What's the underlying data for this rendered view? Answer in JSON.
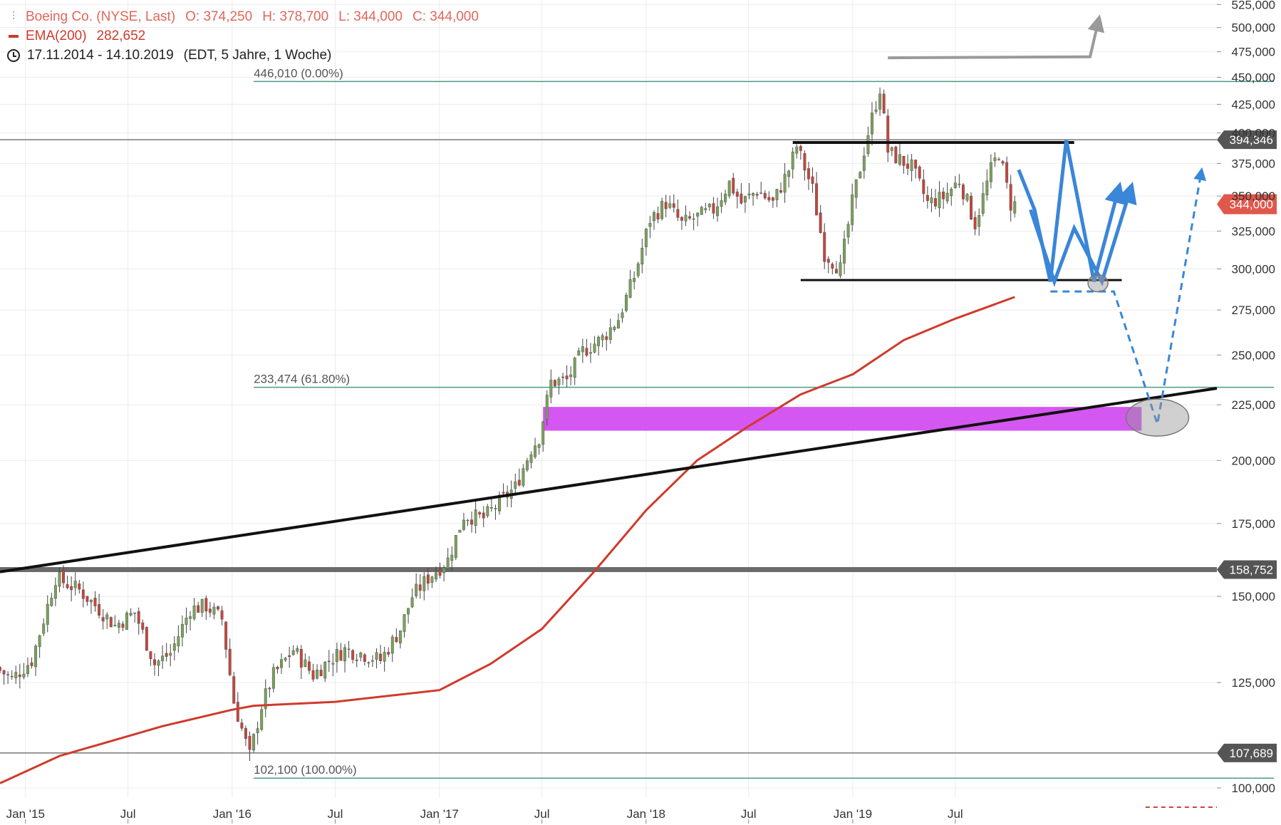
{
  "legend": {
    "symbol": "Boeing Co. (NYSE, Last)",
    "open": "O: 374,250",
    "high": "H: 378,700",
    "low": "L: 344,000",
    "close": "C: 344,000",
    "ema_label": "EMA(200)",
    "ema_value": "282,652",
    "date_range": "17.11.2014 - 14.10.2019",
    "settings": "(EDT, 5 Jahre, 1 Woche)"
  },
  "colors": {
    "up": "#7aa35a",
    "down": "#c9443c",
    "ema": "#d03a2b",
    "fib": "#4a9a8c",
    "zone": "#d24ef0",
    "projection": "#3a86d8",
    "price_tag": "#e0574b",
    "level_tag": "#555555"
  },
  "chart_data": {
    "type": "candlestick",
    "scale": "log",
    "ylim": [
      95000,
      530000
    ],
    "x_range": [
      "2014-11-17",
      "2020-10-05"
    ],
    "y_ticks": [
      "525,000",
      "500,000",
      "475,000",
      "450,000",
      "425,000",
      "400,000",
      "375,000",
      "350,000",
      "325,000",
      "300,000",
      "275,000",
      "250,000",
      "225,000",
      "200,000",
      "175,000",
      "150,000",
      "125,000",
      "100,000"
    ],
    "x_ticks": [
      {
        "label": "Jan '15",
        "date": "2015-01-01"
      },
      {
        "label": "Jul",
        "date": "2015-07-01"
      },
      {
        "label": "Jan '16",
        "date": "2016-01-01"
      },
      {
        "label": "Jul",
        "date": "2016-07-01"
      },
      {
        "label": "Jan '17",
        "date": "2017-01-01"
      },
      {
        "label": "Jul",
        "date": "2017-07-01"
      },
      {
        "label": "Jan '18",
        "date": "2018-01-01"
      },
      {
        "label": "Jul",
        "date": "2018-07-01"
      },
      {
        "label": "Jan '19",
        "date": "2019-01-01"
      },
      {
        "label": "Jul",
        "date": "2019-07-01"
      }
    ],
    "price_path": [
      [
        "2014-11-17",
        129000
      ],
      [
        "2014-12-15",
        126000
      ],
      [
        "2015-01-19",
        131000
      ],
      [
        "2015-02-16",
        147000
      ],
      [
        "2015-03-02",
        156000
      ],
      [
        "2015-04-13",
        152000
      ],
      [
        "2015-05-18",
        146000
      ],
      [
        "2015-06-15",
        141000
      ],
      [
        "2015-07-20",
        145000
      ],
      [
        "2015-08-24",
        130000
      ],
      [
        "2015-09-21",
        133000
      ],
      [
        "2015-10-26",
        146000
      ],
      [
        "2015-11-23",
        147000
      ],
      [
        "2015-12-21",
        143000
      ],
      [
        "2016-01-11",
        120000
      ],
      [
        "2016-02-08",
        107000
      ],
      [
        "2016-02-29",
        119000
      ],
      [
        "2016-03-21",
        127000
      ],
      [
        "2016-04-25",
        134000
      ],
      [
        "2016-05-30",
        127000
      ],
      [
        "2016-06-27",
        131000
      ],
      [
        "2016-07-25",
        134000
      ],
      [
        "2016-08-22",
        133000
      ],
      [
        "2016-09-26",
        131000
      ],
      [
        "2016-10-31",
        140000
      ],
      [
        "2016-11-21",
        150000
      ],
      [
        "2016-12-19",
        156000
      ],
      [
        "2017-01-23",
        162000
      ],
      [
        "2017-02-20",
        178000
      ],
      [
        "2017-03-27",
        177000
      ],
      [
        "2017-04-24",
        183000
      ],
      [
        "2017-05-22",
        189000
      ],
      [
        "2017-06-19",
        205000
      ],
      [
        "2017-07-03",
        210000
      ],
      [
        "2017-07-24",
        236000
      ],
      [
        "2017-08-21",
        237000
      ],
      [
        "2017-09-18",
        252000
      ],
      [
        "2017-10-23",
        259000
      ],
      [
        "2017-11-20",
        270000
      ],
      [
        "2017-12-18",
        295000
      ],
      [
        "2018-01-15",
        333000
      ],
      [
        "2018-02-12",
        345000
      ],
      [
        "2018-03-12",
        330000
      ],
      [
        "2018-04-09",
        335000
      ],
      [
        "2018-05-07",
        340000
      ],
      [
        "2018-06-04",
        360000
      ],
      [
        "2018-06-25",
        345000
      ],
      [
        "2018-07-23",
        354000
      ],
      [
        "2018-08-20",
        345000
      ],
      [
        "2018-09-17",
        370000
      ],
      [
        "2018-10-01",
        389000
      ],
      [
        "2018-10-29",
        355000
      ],
      [
        "2018-11-19",
        310000
      ],
      [
        "2018-12-17",
        300000
      ],
      [
        "2019-01-07",
        345000
      ],
      [
        "2019-02-04",
        400000
      ],
      [
        "2019-02-25",
        440000
      ],
      [
        "2019-03-11",
        385000
      ],
      [
        "2019-03-25",
        380000
      ],
      [
        "2019-04-22",
        372000
      ],
      [
        "2019-05-20",
        345000
      ],
      [
        "2019-06-17",
        349000
      ],
      [
        "2019-07-15",
        362000
      ],
      [
        "2019-08-12",
        330000
      ],
      [
        "2019-09-09",
        370000
      ],
      [
        "2019-09-23",
        384000
      ],
      [
        "2019-10-14",
        344000
      ]
    ],
    "ema_200": [
      [
        "2014-11-17",
        101000
      ],
      [
        "2015-03-02",
        107000
      ],
      [
        "2015-09-01",
        114000
      ],
      [
        "2016-01-01",
        118000
      ],
      [
        "2016-02-08",
        119000
      ],
      [
        "2016-07-01",
        120000
      ],
      [
        "2017-01-01",
        123000
      ],
      [
        "2017-04-01",
        130000
      ],
      [
        "2017-07-01",
        140000
      ],
      [
        "2017-10-01",
        158000
      ],
      [
        "2018-01-01",
        180000
      ],
      [
        "2018-04-01",
        200000
      ],
      [
        "2018-07-01",
        215000
      ],
      [
        "2018-10-01",
        230000
      ],
      [
        "2019-01-01",
        240000
      ],
      [
        "2019-04-01",
        258000
      ],
      [
        "2019-07-01",
        270000
      ],
      [
        "2019-10-14",
        282652
      ]
    ],
    "fib_levels": [
      {
        "label": "446,010 (0.00%)",
        "value": 446010
      },
      {
        "label": "233,474 (61.80%)",
        "value": 233474
      },
      {
        "label": "102,100 (100.00%)",
        "value": 102100
      }
    ],
    "horizontal_lines": [
      {
        "tag": "394,346",
        "value": 394346
      },
      {
        "tag": "158,752",
        "value": 158752
      },
      {
        "tag": "107,689",
        "value": 107689
      }
    ],
    "current_price_tag": {
      "tag": "344,000",
      "value": 344000
    },
    "resistance": {
      "value": 392000,
      "from": "2018-09-17",
      "to": "2020-01-27"
    },
    "support": {
      "value": 293000,
      "from": "2018-10-01",
      "to": "2020-04-20"
    },
    "trendline": {
      "from": [
        "2014-11-17",
        158000
      ],
      "to": [
        "2020-10-05",
        233000
      ]
    },
    "zone": {
      "from": "2017-07-03",
      "to": "2020-05-25",
      "top": 224000,
      "bottom": 213000
    },
    "projection_solid": [
      [
        "2019-10-21",
        370000
      ],
      [
        "2019-11-18",
        340000
      ],
      [
        "2019-12-16",
        292000
      ],
      [
        "2020-01-13",
        394000
      ],
      [
        "2020-03-02",
        292000
      ],
      [
        "2020-04-13",
        353000
      ]
    ],
    "projection_solid_2": [
      [
        "2019-11-11",
        340000
      ],
      [
        "2019-12-23",
        292000
      ],
      [
        "2020-01-27",
        327000
      ],
      [
        "2020-03-16",
        292000
      ],
      [
        "2020-05-04",
        353000
      ]
    ],
    "projection_dashed": [
      [
        "2019-12-16",
        286000
      ],
      [
        "2020-02-24",
        286000
      ],
      [
        "2020-04-06",
        286000
      ],
      [
        "2020-06-22",
        216000
      ],
      [
        "2020-09-07",
        367000
      ]
    ],
    "grey_arrow": [
      [
        "2019-03-04",
        469000
      ],
      [
        "2020-02-24",
        470000
      ],
      [
        "2020-03-09",
        505000
      ]
    ],
    "ellipses": [
      {
        "date": "2020-03-09",
        "value": 291000
      },
      {
        "date": "2020-06-22",
        "value": 219000
      }
    ],
    "red_dashed": {
      "from": "2020-06-01",
      "to": "2020-10-05",
      "value": 96000
    }
  }
}
